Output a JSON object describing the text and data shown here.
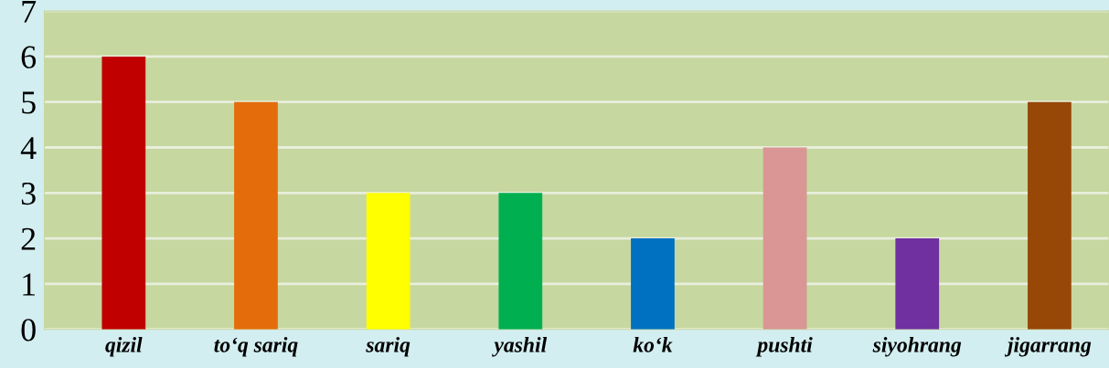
{
  "chart_data": {
    "type": "bar",
    "categories": [
      "qizil",
      "to‘q sariq",
      "sariq",
      "yashil",
      "ko‘k",
      "pushti",
      "siyohrang",
      "jigarrang"
    ],
    "values": [
      6,
      5,
      3,
      3,
      2,
      4,
      2,
      5
    ],
    "colors": [
      "#c00000",
      "#e46c0a",
      "#ffff00",
      "#00b050",
      "#0070c0",
      "#d99694",
      "#7030a0",
      "#974706"
    ],
    "ylim": [
      0,
      7
    ],
    "yticks": [
      0,
      1,
      2,
      3,
      4,
      5,
      6,
      7
    ],
    "grid": "y"
  }
}
